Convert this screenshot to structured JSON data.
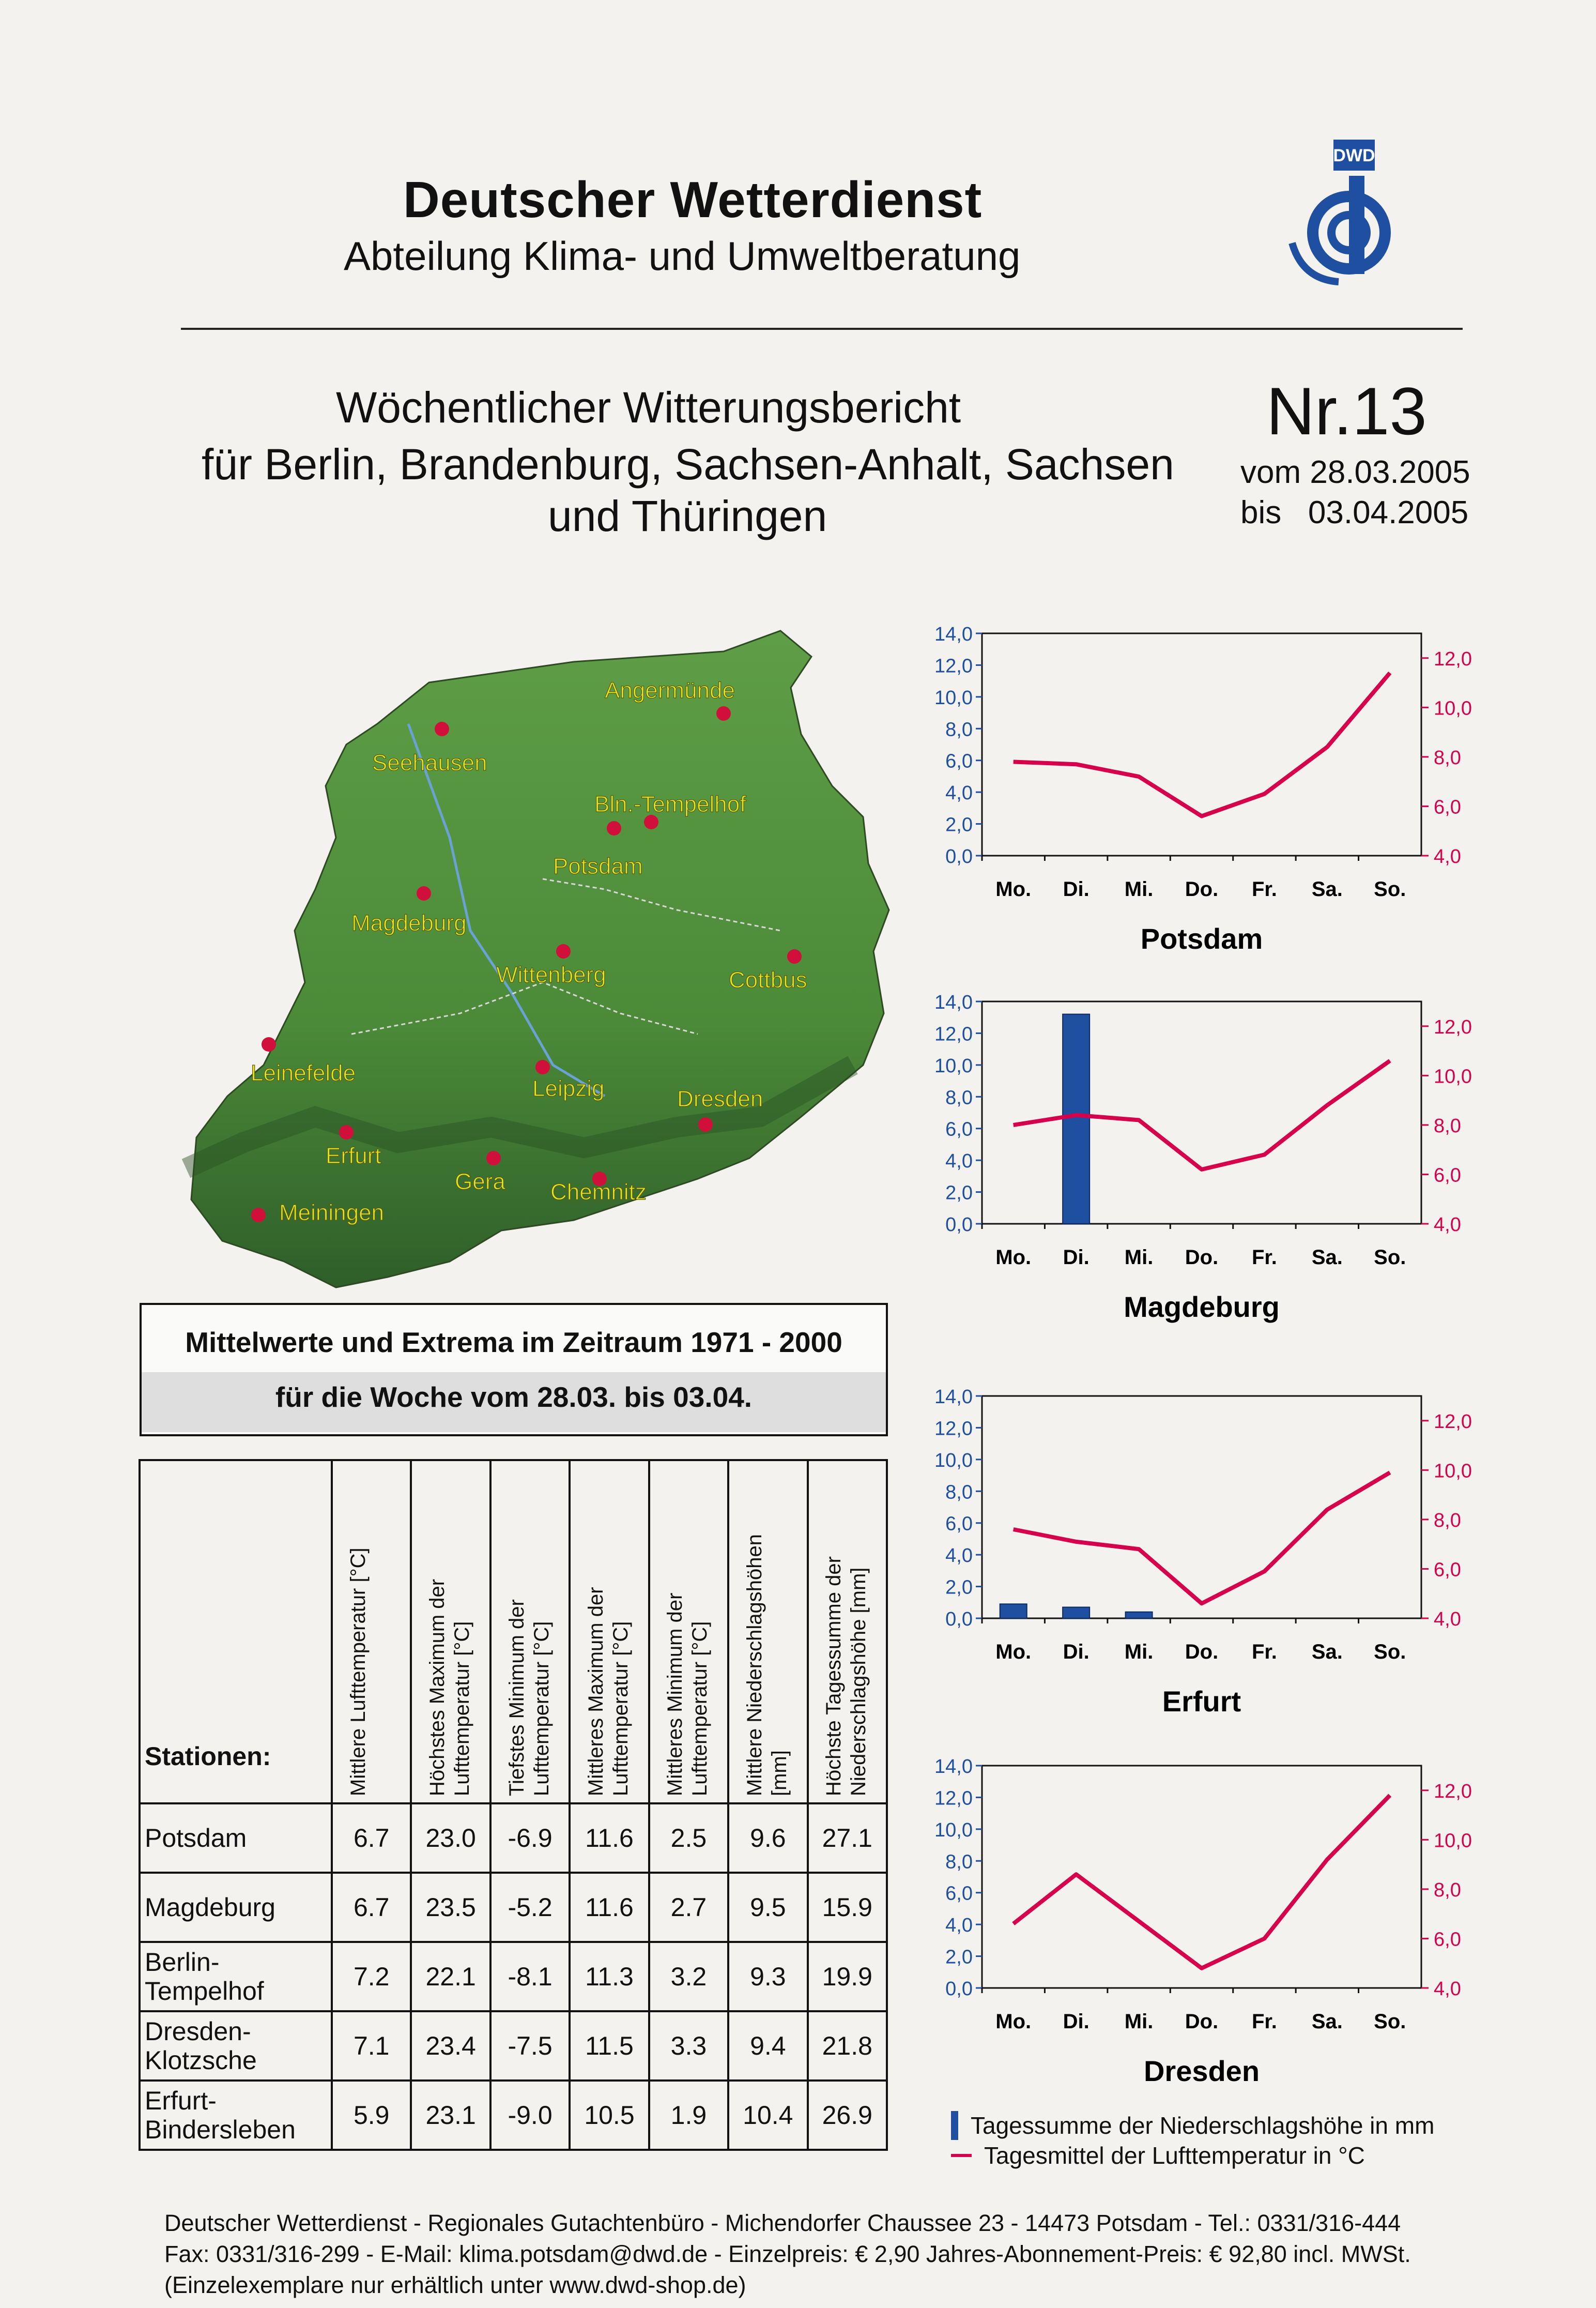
{
  "header": {
    "organization": "Deutscher Wetterdienst",
    "department": "Abteilung Klima- und Umweltberatung",
    "logo_text": "DWD"
  },
  "report": {
    "title": "Wöchentlicher Witterungsbericht",
    "subtitle_line1": "für Berlin, Brandenburg, Sachsen-Anhalt, Sachsen",
    "subtitle_line2": "und Thüringen",
    "number": "Nr.13",
    "from": "vom 28.03.2005",
    "to": "bis   03.04.2005"
  },
  "map": {
    "colors": {
      "land": "#4f8f3a",
      "mountains": "#2f5e2a",
      "city": "#d0103a",
      "label": "#e6e61a"
    },
    "cities": [
      "Angermünde",
      "Seehausen",
      "Bln.-Tempelhof",
      "Potsdam",
      "Magdeburg",
      "Wittenberg",
      "Cottbus",
      "Leinefelde",
      "Leipzig",
      "Dresden",
      "Erfurt",
      "Gera",
      "Chemnitz",
      "Meiningen"
    ]
  },
  "means_box": {
    "line1": "Mittelwerte und Extrema im Zeitraum 1971 - 2000",
    "line2": "für die Woche vom 28.03. bis 03.04."
  },
  "table": {
    "station_header": "Stationen:",
    "columns": [
      "Mittlere Lufttemperatur [°C]",
      "Höchstes Maximum der Lufttemperatur [°C]",
      "Tiefstes Minimum der Lufttemperatur [°C]",
      "Mittleres Maximum der Lufttemperatur [°C]",
      "Mittleres Minimum der Lufttemperatur [°C]",
      "Mittlere Niederschlagshöhen [mm]",
      "Höchste Tagessumme der Niederschlagshöhe [mm]"
    ],
    "rows": [
      {
        "name": "Potsdam",
        "values": [
          "6.7",
          "23.0",
          "-6.9",
          "11.6",
          "2.5",
          "9.6",
          "27.1"
        ]
      },
      {
        "name": "Magdeburg",
        "values": [
          "6.7",
          "23.5",
          "-5.2",
          "11.6",
          "2.7",
          "9.5",
          "15.9"
        ]
      },
      {
        "name": "Berlin-\nTempelhof",
        "values": [
          "7.2",
          "22.1",
          "-8.1",
          "11.3",
          "3.2",
          "9.3",
          "19.9"
        ]
      },
      {
        "name": "Dresden-\nKlotzsche",
        "values": [
          "7.1",
          "23.4",
          "-7.5",
          "11.5",
          "3.3",
          "9.4",
          "21.8"
        ]
      },
      {
        "name": "Erfurt-\nBindersleben",
        "values": [
          "5.9",
          "23.1",
          "-9.0",
          "10.5",
          "1.9",
          "10.4",
          "26.9"
        ]
      }
    ]
  },
  "chart_data": [
    {
      "type": "bar+line",
      "title": "Potsdam",
      "categories": [
        "Mo.",
        "Di.",
        "Mi.",
        "Do.",
        "Fr.",
        "Sa.",
        "So."
      ],
      "precip_ticks": [
        "14,0",
        "12,0",
        "10,0",
        "8,0",
        "6,0",
        "4,0",
        "2,0",
        "0,0"
      ],
      "temp_ticks": [
        "12,0",
        "10,0",
        "8,0",
        "6,0",
        "4,0"
      ],
      "ylim_precip": [
        0,
        14
      ],
      "ylim_temp": [
        4,
        13
      ],
      "series": [
        {
          "name": "Tagessumme der Niederschlagshöhe in mm",
          "kind": "bar",
          "values": [
            0,
            0,
            0,
            0,
            0,
            0,
            0
          ]
        },
        {
          "name": "Tagesmittel der Lufttemperatur in °C",
          "kind": "line",
          "values": [
            7.8,
            7.7,
            7.2,
            5.6,
            6.5,
            8.4,
            11.4
          ]
        }
      ]
    },
    {
      "type": "bar+line",
      "title": "Magdeburg",
      "categories": [
        "Mo.",
        "Di.",
        "Mi.",
        "Do.",
        "Fr.",
        "Sa.",
        "So."
      ],
      "precip_ticks": [
        "14,0",
        "12,0",
        "10,0",
        "8,0",
        "6,0",
        "4,0",
        "2,0",
        "0,0"
      ],
      "temp_ticks": [
        "12,0",
        "10,0",
        "8,0",
        "6,0",
        "4,0"
      ],
      "ylim_precip": [
        0,
        14
      ],
      "ylim_temp": [
        4,
        13
      ],
      "series": [
        {
          "name": "Tagessumme der Niederschlagshöhe in mm",
          "kind": "bar",
          "values": [
            0,
            13.2,
            0,
            0,
            0,
            0,
            0
          ]
        },
        {
          "name": "Tagesmittel der Lufttemperatur in °C",
          "kind": "line",
          "values": [
            8.0,
            8.4,
            8.2,
            6.2,
            6.8,
            8.8,
            10.6
          ]
        }
      ]
    },
    {
      "type": "bar+line",
      "title": "Erfurt",
      "categories": [
        "Mo.",
        "Di.",
        "Mi.",
        "Do.",
        "Fr.",
        "Sa.",
        "So."
      ],
      "precip_ticks": [
        "14,0",
        "12,0",
        "10,0",
        "8,0",
        "6,0",
        "4,0",
        "2,0",
        "0,0"
      ],
      "temp_ticks": [
        "12,0",
        "10,0",
        "8,0",
        "6,0",
        "4,0"
      ],
      "ylim_precip": [
        0,
        14
      ],
      "ylim_temp": [
        4,
        13
      ],
      "series": [
        {
          "name": "Tagessumme der Niederschlagshöhe in mm",
          "kind": "bar",
          "values": [
            0.9,
            0.7,
            0.4,
            0,
            0,
            0,
            0
          ]
        },
        {
          "name": "Tagesmittel der Lufttemperatur in °C",
          "kind": "line",
          "values": [
            7.6,
            7.1,
            6.8,
            4.6,
            5.9,
            8.4,
            9.9
          ]
        }
      ]
    },
    {
      "type": "bar+line",
      "title": "Dresden",
      "categories": [
        "Mo.",
        "Di.",
        "Mi.",
        "Do.",
        "Fr.",
        "Sa.",
        "So."
      ],
      "precip_ticks": [
        "14,0",
        "12,0",
        "10,0",
        "8,0",
        "6,0",
        "4,0",
        "2,0",
        "0,0"
      ],
      "temp_ticks": [
        "12,0",
        "10,0",
        "8,0",
        "6,0",
        "4,0"
      ],
      "ylim_precip": [
        0,
        14
      ],
      "ylim_temp": [
        4,
        13
      ],
      "series": [
        {
          "name": "Tagessumme der Niederschlagshöhe in mm",
          "kind": "bar",
          "values": [
            0,
            0,
            0,
            0,
            0,
            0,
            0
          ]
        },
        {
          "name": "Tagesmittel der Lufttemperatur in °C",
          "kind": "line",
          "values": [
            6.6,
            8.6,
            6.7,
            4.8,
            6.0,
            9.2,
            11.8
          ]
        }
      ]
    }
  ],
  "legend": {
    "bar": "Tagessumme der Niederschlagshöhe in mm",
    "line": "Tagesmittel der Lufttemperatur in °C",
    "bar_color": "#1f4fa0",
    "line_color": "#d6004d"
  },
  "footer": {
    "line1": "Deutscher Wetterdienst - Regionales Gutachtenbüro - Michendorfer Chaussee 23 - 14473 Potsdam  -  Tel.: 0331/316-444",
    "line2": "Fax: 0331/316-299  -  E-Mail: klima.potsdam@dwd.de  -   Einzelpreis: € 2,90 Jahres-Abonnement-Preis: € 92,80 incl. MWSt.",
    "line3": "(Einzelexemplare nur erhältlich unter www.dwd-shop.de)"
  }
}
